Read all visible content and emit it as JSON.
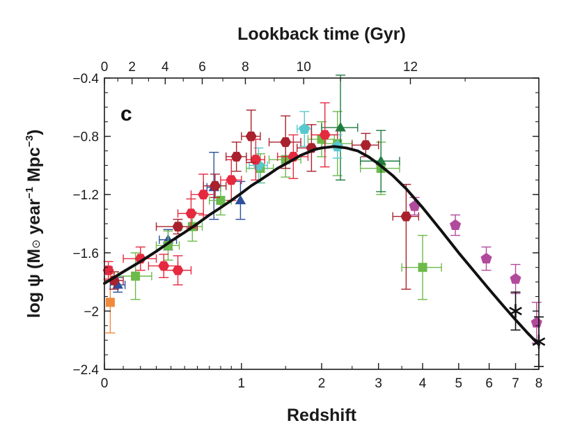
{
  "chart_data": {
    "type": "scatter",
    "title": "Lookback time (Gyr)",
    "panel_label": "c",
    "xlabel": "Redshift",
    "ylabel": [
      "log ψ (M",
      "⊙",
      " year",
      "−1",
      " Mpc",
      "−3",
      ")"
    ],
    "x_scale": "log(1+z)",
    "xlim": [
      0,
      8
    ],
    "ylim": [
      -2.4,
      -0.4
    ],
    "x_ticks": [
      0,
      1,
      2,
      3,
      4,
      5,
      6,
      7,
      8
    ],
    "x_tick_labels": [
      "0",
      "1",
      "2",
      "3",
      "4",
      "5",
      "6",
      "7",
      "8"
    ],
    "y_ticks": [
      -0.4,
      -0.8,
      -1.2,
      -1.6,
      -2.0,
      -2.4
    ],
    "y_tick_labels": [
      "−0.4",
      "−0.8",
      "−1.2",
      "−1.6",
      "−2",
      "−2.4"
    ],
    "top_axis": {
      "label": "Lookback time (Gyr)",
      "tick_labels": [
        "0",
        "2",
        "4",
        "6",
        "8",
        "10",
        "12"
      ],
      "tick_redshifts": [
        0,
        0.15,
        0.36,
        0.64,
        1.04,
        1.74,
        3.7
      ]
    },
    "fit_curve": {
      "name": "best fit",
      "x": [
        0,
        0.1,
        0.2,
        0.3,
        0.4,
        0.5,
        0.6,
        0.7,
        0.8,
        0.9,
        1.0,
        1.1,
        1.2,
        1.3,
        1.4,
        1.5,
        1.6,
        1.7,
        1.8,
        1.9,
        2.0,
        2.2,
        2.4,
        2.6,
        2.8,
        3.0,
        3.3,
        3.6,
        4.0,
        4.5,
        5.0,
        5.5,
        6.0,
        6.5,
        7.0,
        7.5,
        8.0
      ],
      "y": [
        -1.81,
        -1.73,
        -1.66,
        -1.59,
        -1.52,
        -1.46,
        -1.4,
        -1.34,
        -1.29,
        -1.24,
        -1.19,
        -1.14,
        -1.1,
        -1.06,
        -1.02,
        -0.99,
        -0.96,
        -0.93,
        -0.91,
        -0.89,
        -0.88,
        -0.87,
        -0.88,
        -0.9,
        -0.94,
        -0.99,
        -1.07,
        -1.16,
        -1.29,
        -1.45,
        -1.6,
        -1.73,
        -1.85,
        -1.96,
        -2.06,
        -2.15,
        -2.23
      ]
    },
    "series": [
      {
        "name": "orange squares",
        "color": "#ef8a3c",
        "marker": "square",
        "points": [
          {
            "x": 0.03,
            "y": -1.94,
            "ylo": 0.21,
            "yhi": 0.2,
            "xlo": 0.0,
            "xhi": 0.0
          }
        ]
      },
      {
        "name": "blue triangles",
        "color": "#2e4f9c",
        "marker": "triangle",
        "points": [
          {
            "x": 0.07,
            "y": -1.82,
            "ylo": 0.05,
            "yhi": 0.05,
            "xlo": 0.04,
            "xhi": 0.04
          },
          {
            "x": 0.38,
            "y": -1.51,
            "ylo": 0.07,
            "yhi": 0.07,
            "xlo": 0.06,
            "xhi": 0.06
          },
          {
            "x": 0.74,
            "y": -1.15,
            "ylo": 0.22,
            "yhi": 0.24,
            "xlo": 0.06,
            "xhi": 0.06
          },
          {
            "x": 0.99,
            "y": -1.24,
            "ylo": 0.13,
            "yhi": 0.13,
            "xlo": 0.0,
            "xhi": 0.0
          }
        ]
      },
      {
        "name": "green squares",
        "color": "#6cba4b",
        "marker": "square",
        "points": [
          {
            "x": 0.17,
            "y": -1.76,
            "ylo": 0.16,
            "yhi": 0.16,
            "xlo": 0.1,
            "xhi": 0.1
          },
          {
            "x": 0.38,
            "y": -1.55,
            "ylo": 0.1,
            "yhi": 0.1,
            "xlo": 0.08,
            "xhi": 0.08
          },
          {
            "x": 0.56,
            "y": -1.42,
            "ylo": 0.1,
            "yhi": 0.1,
            "xlo": 0.08,
            "xhi": 0.08
          },
          {
            "x": 0.8,
            "y": -1.24,
            "ylo": 0.1,
            "yhi": 0.1,
            "xlo": 0.1,
            "xhi": 0.1
          },
          {
            "x": 1.2,
            "y": -1.02,
            "ylo": 0.1,
            "yhi": 0.1,
            "xlo": 0.15,
            "xhi": 0.15
          },
          {
            "x": 1.5,
            "y": -0.96,
            "ylo": 0.12,
            "yhi": 0.12,
            "xlo": 0.2,
            "xhi": 0.2
          },
          {
            "x": 2.0,
            "y": -0.82,
            "ylo": 0.12,
            "yhi": 0.12,
            "xlo": 0.2,
            "xhi": 0.2
          },
          {
            "x": 2.25,
            "y": -0.85,
            "ylo": 0.22,
            "yhi": 0.22,
            "xlo": 0.25,
            "xhi": 0.25
          },
          {
            "x": 3.05,
            "y": -1.02,
            "ylo": 0.18,
            "yhi": 0.18,
            "xlo": 0.4,
            "xhi": 0.4
          },
          {
            "x": 4.0,
            "y": -1.7,
            "ylo": 0.22,
            "yhi": 0.22,
            "xlo": 0.5,
            "xhi": 0.5
          }
        ]
      },
      {
        "name": "green triangles",
        "color": "#1f7a3f",
        "marker": "triangle",
        "points": [
          {
            "x": 2.3,
            "y": -0.74,
            "ylo": 0.36,
            "yhi": 0.36,
            "xlo": 0.3,
            "xhi": 0.3
          },
          {
            "x": 3.05,
            "y": -0.97,
            "ylo": 0.21,
            "yhi": 0.21,
            "xlo": 0.4,
            "xhi": 0.4
          }
        ]
      },
      {
        "name": "cyan pentagons",
        "color": "#58c8cf",
        "marker": "pentagon",
        "points": [
          {
            "x": 1.18,
            "y": -1.0,
            "ylo": 0.12,
            "yhi": 0.12,
            "xlo": 0.1,
            "xhi": 0.1
          },
          {
            "x": 1.75,
            "y": -0.75,
            "ylo": 0.12,
            "yhi": 0.12,
            "xlo": 0.1,
            "xhi": 0.1
          },
          {
            "x": 2.25,
            "y": -0.87,
            "ylo": 0.08,
            "yhi": 0.08,
            "xlo": 0.0,
            "xhi": 0.0
          }
        ]
      },
      {
        "name": "red hexagons",
        "color": "#e5293f",
        "marker": "hexagon",
        "points": [
          {
            "x": 0.02,
            "y": -1.72,
            "ylo": 0.06,
            "yhi": 0.06,
            "xlo": 0.02,
            "xhi": 0.02
          },
          {
            "x": 0.2,
            "y": -1.64,
            "ylo": 0.08,
            "yhi": 0.08,
            "xlo": 0.1,
            "xhi": 0.1
          },
          {
            "x": 0.35,
            "y": -1.69,
            "ylo": 0.08,
            "yhi": 0.08,
            "xlo": 0.1,
            "xhi": 0.1
          },
          {
            "x": 0.45,
            "y": -1.72,
            "ylo": 0.1,
            "yhi": 0.1,
            "xlo": 0.1,
            "xhi": 0.1
          },
          {
            "x": 0.55,
            "y": -1.33,
            "ylo": 0.1,
            "yhi": 0.1,
            "xlo": 0.1,
            "xhi": 0.1
          },
          {
            "x": 0.65,
            "y": -1.2,
            "ylo": 0.14,
            "yhi": 0.14,
            "xlo": 0.1,
            "xhi": 0.1
          },
          {
            "x": 0.9,
            "y": -1.1,
            "ylo": 0.14,
            "yhi": 0.14,
            "xlo": 0.1,
            "xhi": 0.1
          },
          {
            "x": 1.15,
            "y": -0.96,
            "ylo": 0.14,
            "yhi": 0.14,
            "xlo": 0.1,
            "xhi": 0.1
          },
          {
            "x": 1.6,
            "y": -0.94,
            "ylo": 0.15,
            "yhi": 0.15,
            "xlo": 0.2,
            "xhi": 0.2
          },
          {
            "x": 2.05,
            "y": -0.79,
            "ylo": 0.22,
            "yhi": 0.22,
            "xlo": 0.2,
            "xhi": 0.2
          }
        ]
      },
      {
        "name": "dark red hexagons",
        "color": "#a8212c",
        "marker": "hexagon",
        "points": [
          {
            "x": 0.05,
            "y": -1.79,
            "ylo": 0.06,
            "yhi": 0.06,
            "xlo": 0.05,
            "xhi": 0.05
          },
          {
            "x": 0.45,
            "y": -1.42,
            "ylo": 0.05,
            "yhi": 0.05,
            "xlo": 0.15,
            "xhi": 0.15
          },
          {
            "x": 0.75,
            "y": -1.14,
            "ylo": 0.08,
            "yhi": 0.08,
            "xlo": 0.1,
            "xhi": 0.1
          },
          {
            "x": 0.95,
            "y": -0.94,
            "ylo": 0.1,
            "yhi": 0.1,
            "xlo": 0.1,
            "xhi": 0.1
          },
          {
            "x": 1.1,
            "y": -0.8,
            "ylo": 0.18,
            "yhi": 0.18,
            "xlo": 0.1,
            "xhi": 0.1
          },
          {
            "x": 1.5,
            "y": -0.84,
            "ylo": 0.18,
            "yhi": 0.18,
            "xlo": 0.2,
            "xhi": 0.2
          },
          {
            "x": 1.85,
            "y": -0.88,
            "ylo": 0.16,
            "yhi": 0.16,
            "xlo": 0.2,
            "xhi": 0.2
          },
          {
            "x": 2.75,
            "y": -0.86,
            "ylo": 0.08,
            "yhi": 0.08,
            "xlo": 0.25,
            "xhi": 0.25
          },
          {
            "x": 3.6,
            "y": -1.35,
            "ylo": 0.5,
            "yhi": 0.22,
            "xlo": 0.3,
            "xhi": 0.3
          }
        ]
      },
      {
        "name": "magenta pentagons",
        "color": "#b24a9c",
        "marker": "pentagon",
        "points": [
          {
            "x": 3.8,
            "y": -1.28,
            "ylo": 0.06,
            "yhi": 0.06,
            "xlo": 0.0,
            "xhi": 0.0
          },
          {
            "x": 4.9,
            "y": -1.41,
            "ylo": 0.07,
            "yhi": 0.07,
            "xlo": 0.0,
            "xhi": 0.0
          },
          {
            "x": 5.9,
            "y": -1.64,
            "ylo": 0.08,
            "yhi": 0.08,
            "xlo": 0.0,
            "xhi": 0.0
          },
          {
            "x": 7.0,
            "y": -1.78,
            "ylo": 0.1,
            "yhi": 0.1,
            "xlo": 0.0,
            "xhi": 0.0
          },
          {
            "x": 7.9,
            "y": -2.08,
            "ylo": 0.14,
            "yhi": 0.14,
            "xlo": 0.0,
            "xhi": 0.0
          }
        ]
      },
      {
        "name": "black stars",
        "color": "#111111",
        "marker": "star",
        "points": [
          {
            "x": 7.0,
            "y": -2.0,
            "ylo": 0.13,
            "yhi": 0.13,
            "xlo": 0.0,
            "xhi": 0.0
          },
          {
            "x": 8.0,
            "y": -2.21,
            "ylo": 0.17,
            "yhi": 0.17,
            "xlo": 0.0,
            "xhi": 0.0
          }
        ]
      }
    ]
  }
}
